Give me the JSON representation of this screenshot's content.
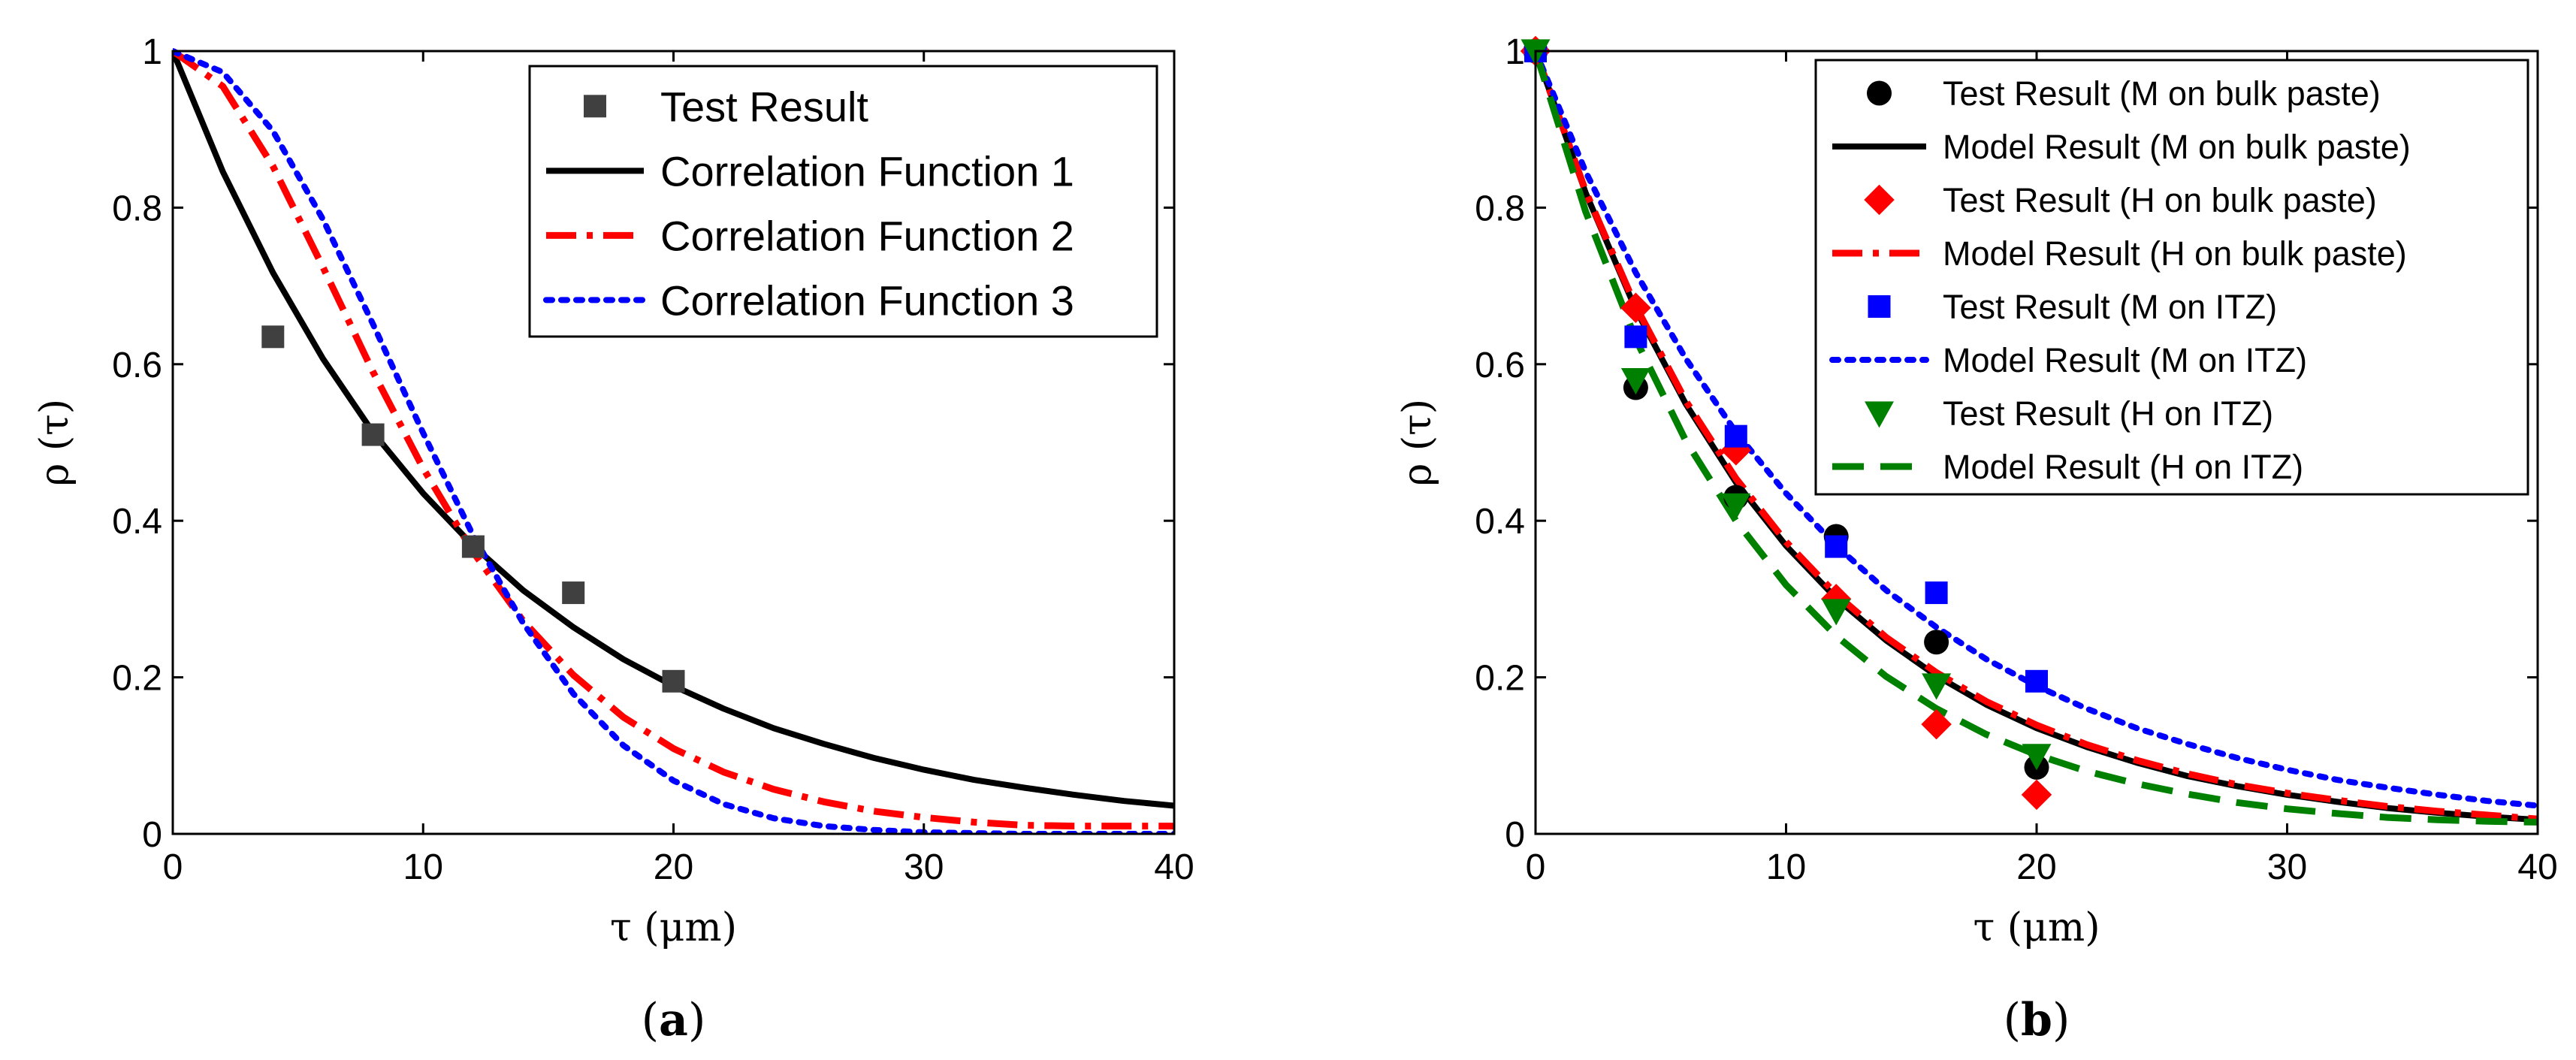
{
  "chart_data": [
    {
      "type": "line",
      "panel_label": "a",
      "xlabel": "τ (μm)",
      "ylabel": "ρ (τ)",
      "xlim": [
        0,
        40
      ],
      "ylim": [
        0,
        1
      ],
      "xticks": [
        "0",
        "10",
        "20",
        "30",
        "40"
      ],
      "yticks": [
        "0",
        "0.2",
        "0.4",
        "0.6",
        "0.8",
        "1"
      ],
      "legend_position": "top-right",
      "series": [
        {
          "name": "Test Result",
          "kind": "marker",
          "marker": "square",
          "color": "#404040",
          "x": [
            4,
            8,
            12,
            16,
            20
          ],
          "y": [
            0.635,
            0.51,
            0.367,
            0.308,
            0.195
          ]
        },
        {
          "name": "Correlation Function 1",
          "kind": "line",
          "dash": "solid",
          "color": "#000000",
          "x": [
            0,
            2,
            4,
            6,
            8,
            10,
            12,
            14,
            16,
            18,
            20,
            22,
            24,
            26,
            28,
            30,
            32,
            34,
            36,
            38,
            40
          ],
          "y": [
            1.0,
            0.846,
            0.717,
            0.607,
            0.513,
            0.435,
            0.368,
            0.311,
            0.264,
            0.223,
            0.189,
            0.16,
            0.135,
            0.115,
            0.097,
            0.082,
            0.069,
            0.059,
            0.05,
            0.042,
            0.036
          ]
        },
        {
          "name": "Correlation Function 2",
          "kind": "line",
          "dash": "dashdot",
          "color": "#ff0000",
          "x": [
            0,
            2,
            4,
            6,
            8,
            10,
            12,
            14,
            16,
            18,
            20,
            22,
            24,
            26,
            28,
            30,
            32,
            34,
            36,
            38,
            40
          ],
          "y": [
            1.0,
            0.955,
            0.853,
            0.724,
            0.59,
            0.467,
            0.36,
            0.272,
            0.203,
            0.149,
            0.109,
            0.079,
            0.057,
            0.041,
            0.029,
            0.021,
            0.015,
            0.011,
            0.01,
            0.01,
            0.01
          ]
        },
        {
          "name": "Correlation Function 3",
          "kind": "line",
          "dash": "dotted",
          "color": "#0000ff",
          "x": [
            0,
            2,
            4,
            6,
            8,
            10,
            12,
            14,
            16,
            18,
            20,
            22,
            24,
            26,
            28,
            30,
            32,
            34,
            36,
            38,
            40
          ],
          "y": [
            1.0,
            0.973,
            0.898,
            0.785,
            0.651,
            0.512,
            0.381,
            0.269,
            0.179,
            0.113,
            0.068,
            0.038,
            0.02,
            0.01,
            0.005,
            0.002,
            0.001,
            0.0,
            0.0,
            0.0,
            0.0
          ]
        }
      ]
    },
    {
      "type": "line",
      "panel_label": "b",
      "xlabel": "τ (μm)",
      "ylabel": "ρ (τ)",
      "xlim": [
        0,
        40
      ],
      "ylim": [
        0,
        1
      ],
      "xticks": [
        "0",
        "10",
        "20",
        "30",
        "40"
      ],
      "yticks": [
        "0",
        "0.2",
        "0.4",
        "0.6",
        "0.8",
        "1"
      ],
      "legend_position": "top-right",
      "series": [
        {
          "name": "Test Result (M on bulk paste)",
          "kind": "marker",
          "marker": "circle",
          "color": "#000000",
          "x": [
            0,
            4,
            8,
            12,
            16,
            20
          ],
          "y": [
            1.0,
            0.57,
            0.43,
            0.38,
            0.245,
            0.085
          ]
        },
        {
          "name": "Model Result (M on bulk paste)",
          "kind": "line",
          "dash": "solid",
          "color": "#000000",
          "x": [
            0,
            2,
            4,
            6,
            8,
            10,
            12,
            14,
            16,
            18,
            20,
            22,
            24,
            26,
            28,
            30,
            32,
            34,
            36,
            38,
            40
          ],
          "y": [
            1.0,
            0.819,
            0.67,
            0.549,
            0.449,
            0.368,
            0.301,
            0.247,
            0.202,
            0.165,
            0.135,
            0.111,
            0.091,
            0.074,
            0.061,
            0.05,
            0.041,
            0.033,
            0.027,
            0.022,
            0.018
          ]
        },
        {
          "name": "Test Result (H on bulk paste)",
          "kind": "marker",
          "marker": "diamond",
          "color": "#ff0000",
          "x": [
            0,
            4,
            8,
            12,
            16,
            20
          ],
          "y": [
            1.0,
            0.672,
            0.49,
            0.3,
            0.14,
            0.05
          ]
        },
        {
          "name": "Model Result (H on bulk paste)",
          "kind": "line",
          "dash": "dashdot",
          "color": "#ff0000",
          "x": [
            0,
            2,
            4,
            6,
            8,
            10,
            12,
            14,
            16,
            18,
            20,
            22,
            24,
            26,
            28,
            30,
            32,
            34,
            36,
            38,
            40
          ],
          "y": [
            1.0,
            0.821,
            0.674,
            0.553,
            0.454,
            0.373,
            0.306,
            0.251,
            0.206,
            0.169,
            0.139,
            0.114,
            0.094,
            0.077,
            0.063,
            0.052,
            0.043,
            0.035,
            0.029,
            0.024,
            0.019
          ]
        },
        {
          "name": "Test Result (M on ITZ)",
          "kind": "marker",
          "marker": "square",
          "color": "#0000ff",
          "x": [
            0,
            4,
            8,
            12,
            16,
            20
          ],
          "y": [
            1.0,
            0.635,
            0.508,
            0.367,
            0.308,
            0.195
          ]
        },
        {
          "name": "Model Result (M on ITZ)",
          "kind": "line",
          "dash": "dotted",
          "color": "#0000ff",
          "x": [
            0,
            2,
            4,
            6,
            8,
            10,
            12,
            14,
            16,
            18,
            20,
            22,
            24,
            26,
            28,
            30,
            32,
            34,
            36,
            38,
            40
          ],
          "y": [
            1.0,
            0.846,
            0.717,
            0.607,
            0.513,
            0.435,
            0.368,
            0.311,
            0.264,
            0.223,
            0.189,
            0.16,
            0.135,
            0.115,
            0.097,
            0.082,
            0.069,
            0.059,
            0.05,
            0.042,
            0.036
          ]
        },
        {
          "name": "Test Result (H on ITZ)",
          "kind": "marker",
          "marker": "triangle-down",
          "color": "#008000",
          "x": [
            0,
            4,
            8,
            12,
            16,
            20
          ],
          "y": [
            1.0,
            0.58,
            0.42,
            0.285,
            0.19,
            0.1
          ]
        },
        {
          "name": "Model Result (H on ITZ)",
          "kind": "line",
          "dash": "dashed",
          "color": "#008000",
          "x": [
            0,
            2,
            4,
            6,
            8,
            10,
            12,
            14,
            16,
            18,
            20,
            22,
            24,
            26,
            28,
            30,
            32,
            34,
            36,
            38,
            40
          ],
          "y": [
            1.0,
            0.795,
            0.632,
            0.502,
            0.4,
            0.318,
            0.253,
            0.201,
            0.16,
            0.127,
            0.101,
            0.08,
            0.064,
            0.051,
            0.04,
            0.032,
            0.026,
            0.021,
            0.018,
            0.016,
            0.015
          ]
        }
      ]
    }
  ]
}
